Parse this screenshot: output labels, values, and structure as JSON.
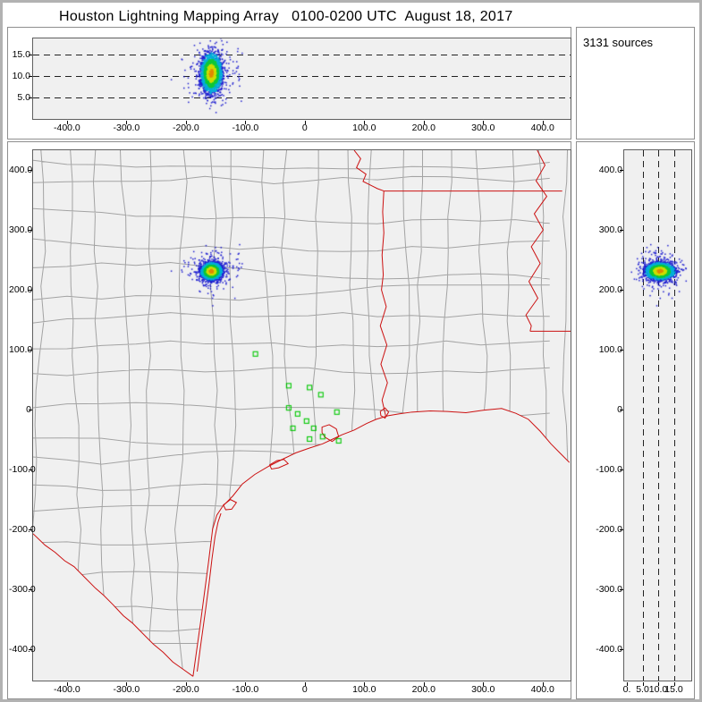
{
  "window": {
    "title": "Houston Lightning Mapping Array   0100-0200 UTC  August 18, 2017"
  },
  "sources_panel": {
    "label": "3131 sources"
  },
  "colors": {
    "frame": "#b2b2b2",
    "plot_bg": "#f0f0f0",
    "county": "#a3a3a3",
    "border_red": "#cc1111",
    "station_green": "#00c800",
    "dot_outer": "#2020d0",
    "dot_low": "#00b0d8",
    "dot_mid": "#10c838",
    "dot_core": "#cede00",
    "dot_core2": "#e08800"
  },
  "axes": {
    "ew": {
      "values": [
        -400,
        -300,
        -200,
        -100,
        0,
        100,
        200,
        300,
        400
      ],
      "labels": [
        "-400.0",
        "-300.0",
        "-200.0",
        "-100.0",
        "0",
        "100.0",
        "200.0",
        "300.0",
        "400.0"
      ]
    },
    "ns": {
      "values": [
        400,
        300,
        200,
        100,
        0,
        -100,
        -200,
        -300,
        -400
      ],
      "labels": [
        "400.0",
        "300.0",
        "200.0",
        "100.0",
        "0",
        "-100.0",
        "-200.0",
        "-300.0",
        "-400.0"
      ]
    },
    "alt_top": {
      "values": [
        5,
        10,
        15
      ],
      "labels": [
        "5.0",
        "10.0",
        "15.0"
      ]
    },
    "alt_right": {
      "values": [
        0,
        5,
        10,
        15
      ],
      "labels": [
        "0.",
        "5.0",
        "10.0",
        "15.0"
      ]
    }
  },
  "chart_data": {
    "sources_count": 3131,
    "panels": [
      {
        "id": "alt-vs-ew",
        "type": "scatter",
        "x_range_km": [
          -457,
          447
        ],
        "y_range_km": [
          0,
          18.75
        ],
        "x_ticks": [
          -400,
          -300,
          -200,
          -100,
          0,
          100,
          200,
          300,
          400
        ],
        "y_ticks": [
          5,
          10,
          15
        ],
        "dashed_alt_lines": [
          5,
          10,
          15
        ]
      },
      {
        "id": "plan-view",
        "type": "scatter",
        "x_range_km": [
          -457,
          447
        ],
        "y_range_km": [
          -452,
          433
        ],
        "x_ticks": [
          -400,
          -300,
          -200,
          -100,
          0,
          100,
          200,
          300,
          400
        ],
        "y_ticks": [
          400,
          300,
          200,
          100,
          0,
          -100,
          -200,
          -300,
          -400
        ]
      },
      {
        "id": "alt-vs-ns",
        "type": "scatter",
        "x_range_km": [
          0,
          21.4
        ],
        "y_range_km": [
          -452,
          433
        ],
        "x_ticks": [
          0,
          5,
          10,
          15
        ],
        "dashed_alt_lines": [
          5,
          10,
          15
        ],
        "y_ticks": [
          400,
          300,
          200,
          100,
          0,
          -100,
          -200,
          -300,
          -400
        ]
      }
    ],
    "storm_cluster": {
      "count": 3131,
      "seed": 42,
      "ew_mean_km": -157,
      "ew_sigma_km": 8,
      "ns_mean_km": 231,
      "ns_sigma_km": 6.5,
      "alt_mean_km": 10.6,
      "alt_sigma_km": 2.1,
      "alt_min_km": 1.5,
      "alt_max_km": 19,
      "outlier_fraction": 0.12,
      "outlier_scale": 2.4
    },
    "stations_km": [
      [
        -83,
        93
      ],
      [
        -27,
        40
      ],
      [
        8,
        37
      ],
      [
        27,
        25
      ],
      [
        -27,
        3
      ],
      [
        -12,
        -7
      ],
      [
        3,
        -19
      ],
      [
        -20,
        -31
      ],
      [
        15,
        -31
      ],
      [
        8,
        -49
      ],
      [
        30,
        -45
      ],
      [
        54,
        -4
      ],
      [
        57,
        -52
      ]
    ],
    "map_geo": {
      "borders": [
        {
          "name": "gulf-coastline",
          "closed": false,
          "points": [
            [
              -188,
              -445
            ],
            [
              -176,
              -360
            ],
            [
              -168,
              -300
            ],
            [
              -162,
              -255
            ],
            [
              -155,
              -199
            ],
            [
              -148,
              -176
            ],
            [
              -138,
              -161
            ],
            [
              -121,
              -144
            ],
            [
              -105,
              -124
            ],
            [
              -84,
              -108
            ],
            [
              -60,
              -94
            ],
            [
              -38,
              -83
            ],
            [
              -15,
              -72
            ],
            [
              8,
              -64
            ],
            [
              30,
              -57
            ],
            [
              45,
              -50
            ],
            [
              62,
              -42
            ],
            [
              83,
              -34
            ],
            [
              104,
              -23
            ],
            [
              120,
              -16
            ],
            [
              140,
              -10
            ],
            [
              158,
              -7
            ],
            [
              180,
              -4
            ],
            [
              211,
              -2
            ],
            [
              240,
              -3
            ],
            [
              271,
              -5
            ],
            [
              300,
              -1
            ],
            [
              331,
              2
            ],
            [
              355,
              -6
            ],
            [
              376,
              -16
            ],
            [
              396,
              -36
            ],
            [
              414,
              -57
            ],
            [
              431,
              -74
            ],
            [
              445,
              -88
            ]
          ]
        },
        {
          "name": "rio-grande-border",
          "closed": false,
          "points": [
            [
              -457,
              -207
            ],
            [
              -437,
              -226
            ],
            [
              -420,
              -238
            ],
            [
              -404,
              -252
            ],
            [
              -388,
              -262
            ],
            [
              -370,
              -280
            ],
            [
              -352,
              -298
            ],
            [
              -338,
              -310
            ],
            [
              -322,
              -326
            ],
            [
              -305,
              -344
            ],
            [
              -290,
              -356
            ],
            [
              -272,
              -374
            ],
            [
              -255,
              -391
            ],
            [
              -238,
              -405
            ],
            [
              -222,
              -421
            ],
            [
              -205,
              -433
            ],
            [
              -188,
              -445
            ]
          ]
        },
        {
          "name": "padre-island",
          "closed": false,
          "points": [
            [
              -181,
              -437
            ],
            [
              -174,
              -385
            ],
            [
              -167,
              -335
            ],
            [
              -161,
              -290
            ],
            [
              -156,
              -248
            ],
            [
              -151,
              -212
            ],
            [
              -146,
              -188
            ],
            [
              -141,
              -173
            ]
          ]
        },
        {
          "name": "red-river-border",
          "closed": false,
          "points": [
            [
              83,
              433
            ],
            [
              94,
              419
            ],
            [
              87,
              404
            ],
            [
              103,
              393
            ],
            [
              98,
              381
            ],
            [
              114,
              373
            ],
            [
              122,
              369
            ],
            [
              133,
              365
            ]
          ]
        },
        {
          "name": "arkansas-louisiana-border",
          "closed": false,
          "points": [
            [
              133,
              365
            ],
            [
              433,
              365
            ]
          ]
        },
        {
          "name": "texas-louisiana-border",
          "closed": false,
          "points": [
            [
              133,
              365
            ],
            [
              131,
              330
            ],
            [
              133,
              295
            ],
            [
              130,
              258
            ],
            [
              132,
              225
            ],
            [
              129,
              200
            ],
            [
              137,
              172
            ],
            [
              127,
              140
            ],
            [
              138,
              108
            ],
            [
              128,
              76
            ],
            [
              139,
              45
            ],
            [
              130,
              16
            ],
            [
              136,
              -10
            ]
          ]
        },
        {
          "name": "mississippi-river-border",
          "closed": false,
          "points": [
            [
              391,
              433
            ],
            [
              404,
              408
            ],
            [
              389,
              382
            ],
            [
              407,
              356
            ],
            [
              386,
              327
            ],
            [
              401,
              300
            ],
            [
              381,
              272
            ],
            [
              396,
              244
            ],
            [
              377,
              214
            ],
            [
              392,
              186
            ],
            [
              372,
              158
            ],
            [
              381,
              140
            ],
            [
              379,
              131
            ]
          ]
        },
        {
          "name": "louisiana-mississippi-border",
          "closed": false,
          "points": [
            [
              379,
              131
            ],
            [
              447,
              131
            ]
          ]
        },
        {
          "name": "galveston-bay",
          "closed": true,
          "points": [
            [
              29,
              -29
            ],
            [
              41,
              -25
            ],
            [
              53,
              -32
            ],
            [
              57,
              -45
            ],
            [
              46,
              -53
            ],
            [
              34,
              -46
            ],
            [
              29,
              -38
            ]
          ]
        },
        {
          "name": "matagorda-bay",
          "closed": true,
          "points": [
            [
              -59,
              -92
            ],
            [
              -47,
              -85
            ],
            [
              -35,
              -83
            ],
            [
              -28,
              -90
            ],
            [
              -44,
              -97
            ],
            [
              -56,
              -99
            ]
          ]
        },
        {
          "name": "corpus-christi-bay",
          "closed": true,
          "points": [
            [
              -137,
              -159
            ],
            [
              -125,
              -150
            ],
            [
              -115,
              -155
            ],
            [
              -123,
              -166
            ],
            [
              -133,
              -167
            ]
          ]
        },
        {
          "name": "sabine-lake",
          "closed": true,
          "points": [
            [
              127,
              -3
            ],
            [
              135,
              3
            ],
            [
              141,
              -4
            ],
            [
              135,
              -14
            ],
            [
              128,
              -10
            ]
          ]
        }
      ]
    }
  }
}
